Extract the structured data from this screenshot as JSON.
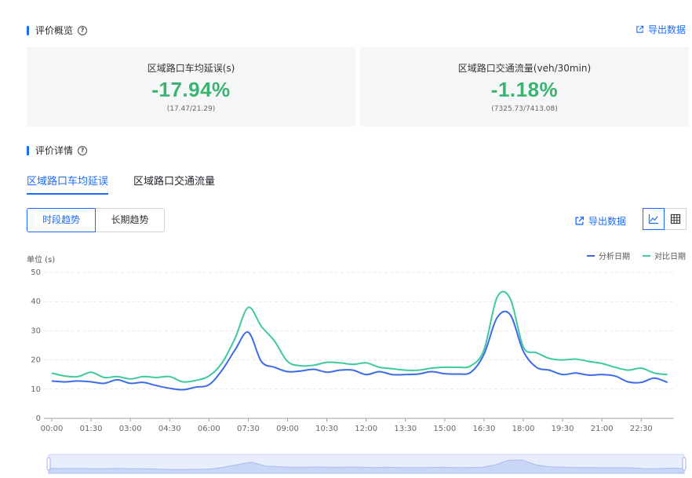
{
  "overview": {
    "title": "评价概览",
    "export_label": "导出数据",
    "cards": [
      {
        "label": "区域路口车均延误(s)",
        "value": "-17.94%",
        "ratio": "(17.47/21.29)"
      },
      {
        "label": "区域路口交通流量(veh/30min)",
        "value": "-1.18%",
        "ratio": "(7325.73/7413.08)"
      }
    ]
  },
  "details": {
    "title": "评价详情",
    "tabs": [
      "区域路口车均延误",
      "区域路口交通流量"
    ],
    "segments": [
      "时段趋势",
      "长期趋势"
    ],
    "export_label": "导出数据",
    "unit": "单位 (s)"
  },
  "colors": {
    "accent": "#1a6cff",
    "series_a": "#3b6be8",
    "series_b": "#3ec9a0",
    "positive": "#3cb371"
  },
  "chart_data": {
    "type": "line",
    "ylim": [
      0,
      50
    ],
    "yticks": [
      0,
      10,
      20,
      30,
      40,
      50
    ],
    "x_tick_labels": [
      "00:00",
      "01:30",
      "03:00",
      "04:30",
      "06:00",
      "07:30",
      "09:00",
      "10:30",
      "12:00",
      "13:30",
      "15:00",
      "16:30",
      "18:00",
      "19:30",
      "21:00",
      "22:30"
    ],
    "grid": true,
    "legend_position": "top-right",
    "x": [
      "00:00",
      "00:30",
      "01:00",
      "01:30",
      "02:00",
      "02:30",
      "03:00",
      "03:30",
      "04:00",
      "04:30",
      "05:00",
      "05:30",
      "06:00",
      "06:30",
      "07:00",
      "07:30",
      "08:00",
      "08:30",
      "09:00",
      "09:30",
      "10:00",
      "10:30",
      "11:00",
      "11:30",
      "12:00",
      "12:30",
      "13:00",
      "13:30",
      "14:00",
      "14:30",
      "15:00",
      "15:30",
      "16:00",
      "16:30",
      "17:00",
      "17:30",
      "18:00",
      "18:30",
      "19:00",
      "19:30",
      "20:00",
      "20:30",
      "21:00",
      "21:30",
      "22:00",
      "22:30",
      "23:00",
      "23:30"
    ],
    "series": [
      {
        "name": "分析日期",
        "values": [
          12.8,
          12.5,
          12.8,
          12.5,
          12.0,
          13.2,
          12.0,
          12.3,
          11.2,
          10.3,
          9.8,
          10.7,
          11.5,
          16.5,
          23.5,
          29.5,
          19.5,
          17.5,
          16.0,
          16.2,
          16.8,
          15.8,
          16.5,
          16.5,
          15.0,
          16.0,
          15.0,
          15.0,
          15.2,
          16.0,
          15.3,
          15.2,
          15.8,
          22.0,
          34.5,
          35.5,
          23.0,
          17.5,
          16.5,
          15.0,
          15.5,
          14.8,
          15.0,
          14.5,
          12.5,
          12.3,
          13.8,
          12.3
        ]
      },
      {
        "name": "对比日期",
        "values": [
          15.5,
          14.5,
          14.3,
          15.8,
          14.0,
          14.3,
          13.5,
          14.3,
          14.0,
          14.3,
          12.5,
          13.0,
          14.5,
          19.0,
          27.5,
          38.0,
          31.5,
          26.5,
          19.5,
          18.0,
          18.2,
          19.2,
          19.0,
          18.5,
          19.0,
          17.5,
          17.0,
          16.5,
          16.5,
          17.2,
          17.5,
          17.5,
          18.0,
          23.5,
          41.5,
          41.0,
          24.5,
          22.5,
          20.5,
          20.0,
          20.3,
          19.5,
          18.8,
          17.5,
          16.5,
          17.2,
          15.5,
          15.0
        ]
      }
    ]
  }
}
